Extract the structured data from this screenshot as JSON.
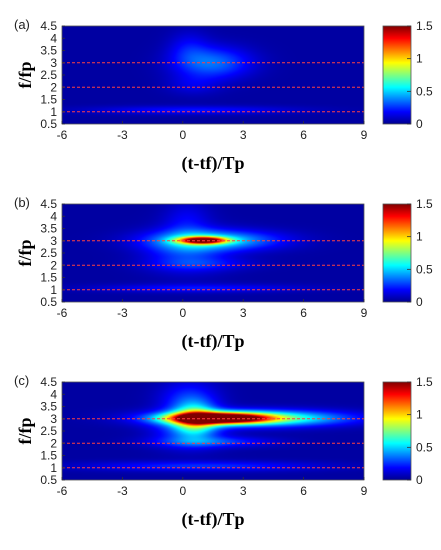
{
  "chart_data": [
    {
      "type": "heatmap",
      "panel_label": "(a)",
      "xlabel": "(t-tf)/Tp",
      "ylabel": "f/fp",
      "xlim": [
        -6,
        9
      ],
      "ylim": [
        0.5,
        4.5
      ],
      "xticks": [
        "-6",
        "-3",
        "0",
        "3",
        "6",
        "9"
      ],
      "yticks": [
        "0.5",
        "1",
        "1.5",
        "2",
        "2.5",
        "3",
        "3.5",
        "4",
        "4.5"
      ],
      "colorbar": {
        "range": [
          0,
          1.5
        ],
        "ticks": [
          "0",
          "0.5",
          "1",
          "1.5"
        ],
        "colormap": "jet"
      },
      "dashed_lines_y": [
        1,
        2,
        3
      ],
      "dashed_line_color": "#ff4040",
      "blobs": [
        {
          "x": 1.5,
          "y": 3.0,
          "sx": 1.3,
          "sy": 0.45,
          "amp": 0.3
        },
        {
          "x": 0.3,
          "y": 3.6,
          "sx": 0.7,
          "sy": 0.5,
          "amp": 0.12
        },
        {
          "x": 0.5,
          "y": 2.1,
          "sx": 0.9,
          "sy": 0.3,
          "amp": 0.09
        },
        {
          "x": 0.5,
          "y": 1.05,
          "sx": 3.5,
          "sy": 0.12,
          "amp": 0.16
        }
      ]
    },
    {
      "type": "heatmap",
      "panel_label": "(b)",
      "xlabel": "(t-tf)/Tp",
      "ylabel": "f/fp",
      "xlim": [
        -6,
        9
      ],
      "ylim": [
        0.5,
        4.5
      ],
      "xticks": [
        "-6",
        "-3",
        "0",
        "3",
        "6",
        "9"
      ],
      "yticks": [
        "0.5",
        "1",
        "1.5",
        "2",
        "2.5",
        "3",
        "3.5",
        "4",
        "4.5"
      ],
      "colorbar": {
        "range": [
          0,
          1.5
        ],
        "ticks": [
          "0",
          "0.5",
          "1",
          "1.5"
        ],
        "colormap": "jet"
      },
      "dashed_lines_y": [
        1,
        2,
        3
      ],
      "dashed_line_color": "#ff4040",
      "blobs": [
        {
          "x": 1.0,
          "y": 3.02,
          "sx": 0.8,
          "sy": 0.1,
          "amp": 1.3
        },
        {
          "x": 1.6,
          "y": 3.02,
          "sx": 2.2,
          "sy": 0.28,
          "amp": 0.45
        },
        {
          "x": 0.2,
          "y": 2.6,
          "sx": 1.4,
          "sy": 0.6,
          "amp": 0.22
        },
        {
          "x": 0.2,
          "y": 3.8,
          "sx": 0.8,
          "sy": 0.6,
          "amp": 0.12
        },
        {
          "x": 1.0,
          "y": 2.05,
          "sx": 1.8,
          "sy": 0.18,
          "amp": 0.12
        },
        {
          "x": 0.8,
          "y": 1.05,
          "sx": 3.5,
          "sy": 0.12,
          "amp": 0.16
        }
      ]
    },
    {
      "type": "heatmap",
      "panel_label": "(c)",
      "xlabel": "(t-tf)/Tp",
      "ylabel": "f/fp",
      "xlim": [
        -6,
        9
      ],
      "ylim": [
        0.5,
        4.5
      ],
      "xticks": [
        "-6",
        "-3",
        "0",
        "3",
        "6",
        "9"
      ],
      "yticks": [
        "0.5",
        "1",
        "1.5",
        "2",
        "2.5",
        "3",
        "3.5",
        "4",
        "4.5"
      ],
      "colorbar": {
        "range": [
          0,
          1.5
        ],
        "ticks": [
          "0",
          "0.5",
          "1",
          "1.5"
        ],
        "colormap": "jet"
      },
      "dashed_lines_y": [
        1,
        2,
        3
      ],
      "dashed_line_color": "#ff4040",
      "blobs": [
        {
          "x": 1.8,
          "y": 3.03,
          "sx": 1.6,
          "sy": 0.15,
          "amp": 1.55
        },
        {
          "x": 3.5,
          "y": 3.02,
          "sx": 3.0,
          "sy": 0.22,
          "amp": 0.75
        },
        {
          "x": 0.6,
          "y": 3.0,
          "sx": 0.7,
          "sy": 0.45,
          "amp": 0.55
        },
        {
          "x": 0.3,
          "y": 2.55,
          "sx": 1.2,
          "sy": 0.5,
          "amp": 0.25
        },
        {
          "x": 0.3,
          "y": 3.8,
          "sx": 1.0,
          "sy": 0.55,
          "amp": 0.2
        },
        {
          "x": 1.5,
          "y": 2.05,
          "sx": 2.0,
          "sy": 0.15,
          "amp": 0.22
        },
        {
          "x": 1.0,
          "y": 1.05,
          "sx": 4.0,
          "sy": 0.14,
          "amp": 0.2
        }
      ]
    }
  ]
}
